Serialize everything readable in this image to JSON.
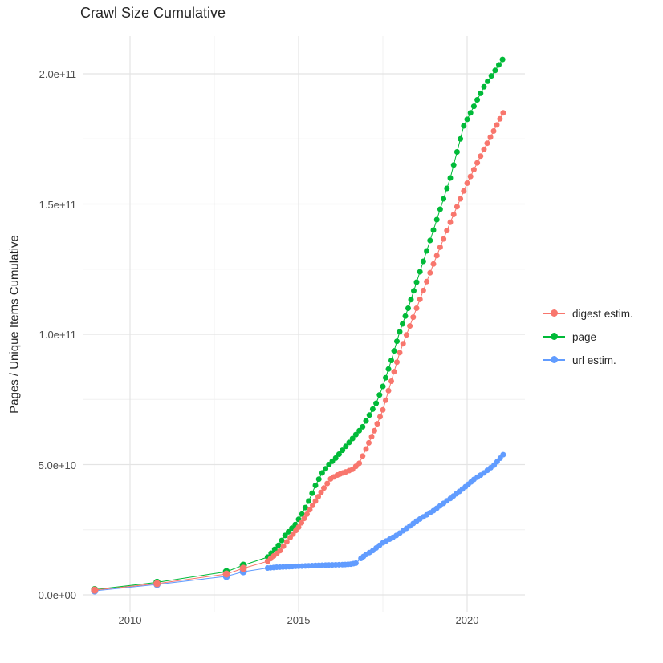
{
  "title": "Crawl Size Cumulative",
  "axes": {
    "y_title": "Pages / Unique Items Cumulative",
    "y_tick_labels": [
      "0.0e+00",
      "5.0e+10",
      "1.0e+11",
      "1.5e+11",
      "2.0e+11"
    ],
    "x_tick_labels": [
      "2010",
      "2015",
      "2020"
    ]
  },
  "legend": {
    "entries": [
      {
        "label": "digest estim.",
        "color": "#F8766D"
      },
      {
        "label": "page",
        "color": "#00BA38"
      },
      {
        "label": "url estim.",
        "color": "#619CFF"
      }
    ]
  },
  "colors": {
    "digest": "#F8766D",
    "page": "#00BA38",
    "url": "#619CFF",
    "grid_major": "#e4e4e4",
    "grid_minor": "#f0f0f0",
    "axis_text": "#4d4d4d"
  },
  "chart_data": {
    "type": "scatter",
    "title": "Crawl Size Cumulative",
    "xlabel": "",
    "ylabel": "Pages / Unique Items Cumulative",
    "legend_position": "right",
    "grid": true,
    "x_ticks": [
      2010,
      2015,
      2020
    ],
    "x_minor_ticks": [
      2012.5,
      2017.5
    ],
    "y_ticks_e9": [
      0,
      50,
      100,
      150,
      200
    ],
    "y_minor_ticks_e9": [
      25,
      75,
      125,
      175
    ],
    "y_tick_labels": [
      "0.0e+00",
      "5.0e+10",
      "1.0e+11",
      "1.5e+11",
      "2.0e+11"
    ],
    "xlim_years": [
      2008.6,
      2021.75
    ],
    "ylim_e9": [
      -6.5,
      214
    ],
    "value_unit": "pages / unique items, values in billions (1e9)",
    "dense_from_year": 2014.0,
    "dot_interval_years": 0.1,
    "draw_order": [
      1,
      2,
      0
    ],
    "series": [
      {
        "name": "digest estim.",
        "color": "#F8766D",
        "points": [
          [
            2008.95,
            1.8
          ],
          [
            2010.8,
            4.3
          ],
          [
            2012.86,
            8.0
          ],
          [
            2013.36,
            10.2
          ],
          [
            2014.08,
            12.9
          ],
          [
            2014.45,
            17
          ],
          [
            2014.75,
            22
          ],
          [
            2015.0,
            26
          ],
          [
            2015.25,
            31
          ],
          [
            2015.5,
            36
          ],
          [
            2015.75,
            41
          ],
          [
            2015.95,
            44.5
          ],
          [
            2016.15,
            46
          ],
          [
            2016.4,
            47.2
          ],
          [
            2016.6,
            48.2
          ],
          [
            2016.8,
            50.5
          ],
          [
            2017.0,
            56
          ],
          [
            2017.25,
            63
          ],
          [
            2017.5,
            71
          ],
          [
            2017.75,
            82
          ],
          [
            2018.0,
            93
          ],
          [
            2018.5,
            110
          ],
          [
            2019.0,
            127
          ],
          [
            2019.5,
            143
          ],
          [
            2020.0,
            158
          ],
          [
            2020.5,
            171
          ],
          [
            2021.07,
            185
          ]
        ]
      },
      {
        "name": "page",
        "color": "#00BA38",
        "points": [
          [
            2008.95,
            2.0
          ],
          [
            2010.8,
            4.8
          ],
          [
            2012.86,
            8.9
          ],
          [
            2013.36,
            11.4
          ],
          [
            2014.08,
            14.5
          ],
          [
            2014.4,
            19
          ],
          [
            2014.6,
            22.8
          ],
          [
            2014.9,
            27
          ],
          [
            2015.1,
            31
          ],
          [
            2015.3,
            36
          ],
          [
            2015.5,
            42
          ],
          [
            2015.7,
            46.8
          ],
          [
            2015.9,
            50
          ],
          [
            2016.1,
            52.5
          ],
          [
            2016.3,
            55.5
          ],
          [
            2016.5,
            58.5
          ],
          [
            2016.7,
            61.5
          ],
          [
            2016.9,
            64.5
          ],
          [
            2017.1,
            69
          ],
          [
            2017.3,
            73.5
          ],
          [
            2017.5,
            80
          ],
          [
            2017.75,
            90
          ],
          [
            2018.0,
            101
          ],
          [
            2018.25,
            110
          ],
          [
            2018.5,
            120
          ],
          [
            2019.0,
            140
          ],
          [
            2019.5,
            160
          ],
          [
            2019.9,
            180
          ],
          [
            2020.5,
            195
          ],
          [
            2021.05,
            205.5
          ]
        ]
      },
      {
        "name": "url estim.",
        "color": "#619CFF",
        "points": [
          [
            2008.95,
            1.5
          ],
          [
            2010.8,
            4.0
          ],
          [
            2012.86,
            7.1
          ],
          [
            2013.36,
            8.9
          ],
          [
            2014.08,
            10.3
          ],
          [
            2014.35,
            10.6
          ],
          [
            2015.0,
            11.0
          ],
          [
            2015.5,
            11.3
          ],
          [
            2016.0,
            11.5
          ],
          [
            2016.3,
            11.6
          ],
          [
            2016.55,
            11.8
          ],
          [
            2016.7,
            12.2
          ],
          [
            2016.85,
            14.0
          ],
          [
            2017.0,
            15.5
          ],
          [
            2017.2,
            17.0
          ],
          [
            2017.5,
            20
          ],
          [
            2017.9,
            22.8
          ],
          [
            2018.1,
            24.6
          ],
          [
            2018.5,
            28.3
          ],
          [
            2019.0,
            32.3
          ],
          [
            2019.5,
            37
          ],
          [
            2019.95,
            41.5
          ],
          [
            2020.2,
            44.3
          ],
          [
            2020.5,
            46.8
          ],
          [
            2020.8,
            49.8
          ],
          [
            2021.07,
            53.8
          ]
        ]
      }
    ]
  }
}
